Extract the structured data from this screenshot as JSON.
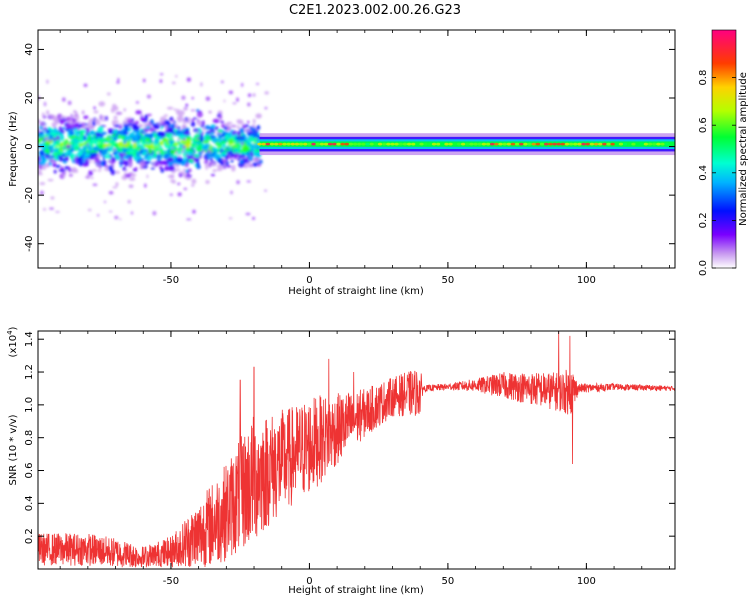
{
  "figure_title": "C2E1.2023.002.00.26.G23",
  "colors": {
    "snr_line": "#ee3333",
    "axis": "#000000",
    "background": "#ffffff"
  },
  "chart_data": [
    {
      "type": "heatmap",
      "xlabel": "Height of straight line (km)",
      "ylabel": "Frequency (Hz)",
      "xlim": [
        -98,
        132
      ],
      "ylim": [
        -50,
        48
      ],
      "xticks": [
        -50,
        0,
        50,
        100
      ],
      "yticks": [
        -40,
        -20,
        0,
        20,
        40
      ],
      "colorbar": {
        "label": "Normalized spectral amplitude",
        "range": [
          0,
          1
        ],
        "ticks": [
          "0.0",
          "0.2",
          "0.4",
          "0.6",
          "0.8"
        ],
        "colormap": "rainbow (violet-blue-cyan-green-yellow-red-magenta)"
      },
      "description_of_features": {
        "signal_center_hz": 1,
        "broad_region_x": [
          -98,
          -18
        ],
        "broad_region_halfwidth_hz": 10,
        "narrow_band_x": [
          -18,
          132
        ],
        "narrow_band_halfwidth_hz": 2.5
      }
    },
    {
      "type": "line",
      "xlabel": "Height of straight line (km)",
      "ylabel": "SNR (10 * v/v)",
      "y_multiplier": "(x10^4)",
      "y_multiplier_base": "(x10",
      "y_multiplier_exp": "4",
      "xlim": [
        -98,
        132
      ],
      "ylim": [
        0.0,
        1.45
      ],
      "xticks": [
        -50,
        0,
        50,
        100
      ],
      "yticks": [
        0.2,
        0.4,
        0.6,
        0.8,
        1.0,
        1.2,
        1.4
      ],
      "envelope": {
        "x": [
          -98,
          -80,
          -70,
          -60,
          -50,
          -40,
          -30,
          -20,
          -15,
          -5,
          0,
          10,
          20,
          30,
          40,
          41,
          50,
          60,
          70,
          80,
          90,
          95,
          97,
          110,
          132
        ],
        "mean": [
          0.12,
          0.12,
          0.1,
          0.07,
          0.1,
          0.2,
          0.35,
          0.55,
          0.6,
          0.7,
          0.75,
          0.85,
          0.95,
          1.05,
          1.08,
          1.1,
          1.11,
          1.12,
          1.12,
          1.1,
          1.08,
          1.08,
          1.1,
          1.11,
          1.1
        ],
        "amp": [
          0.1,
          0.1,
          0.09,
          0.07,
          0.1,
          0.22,
          0.3,
          0.4,
          0.35,
          0.3,
          0.3,
          0.22,
          0.15,
          0.12,
          0.15,
          0.02,
          0.02,
          0.04,
          0.08,
          0.1,
          0.12,
          0.15,
          0.03,
          0.02,
          0.015
        ]
      },
      "notable_points": [
        {
          "x": -20,
          "y": 1.23
        },
        {
          "x": -25,
          "y": 1.15
        },
        {
          "x": 7,
          "y": 1.28
        },
        {
          "x": 16,
          "y": 1.2
        },
        {
          "x": 90,
          "y": 1.45
        },
        {
          "x": 94,
          "y": 1.42
        },
        {
          "x": 95,
          "y": 0.64
        }
      ]
    }
  ]
}
